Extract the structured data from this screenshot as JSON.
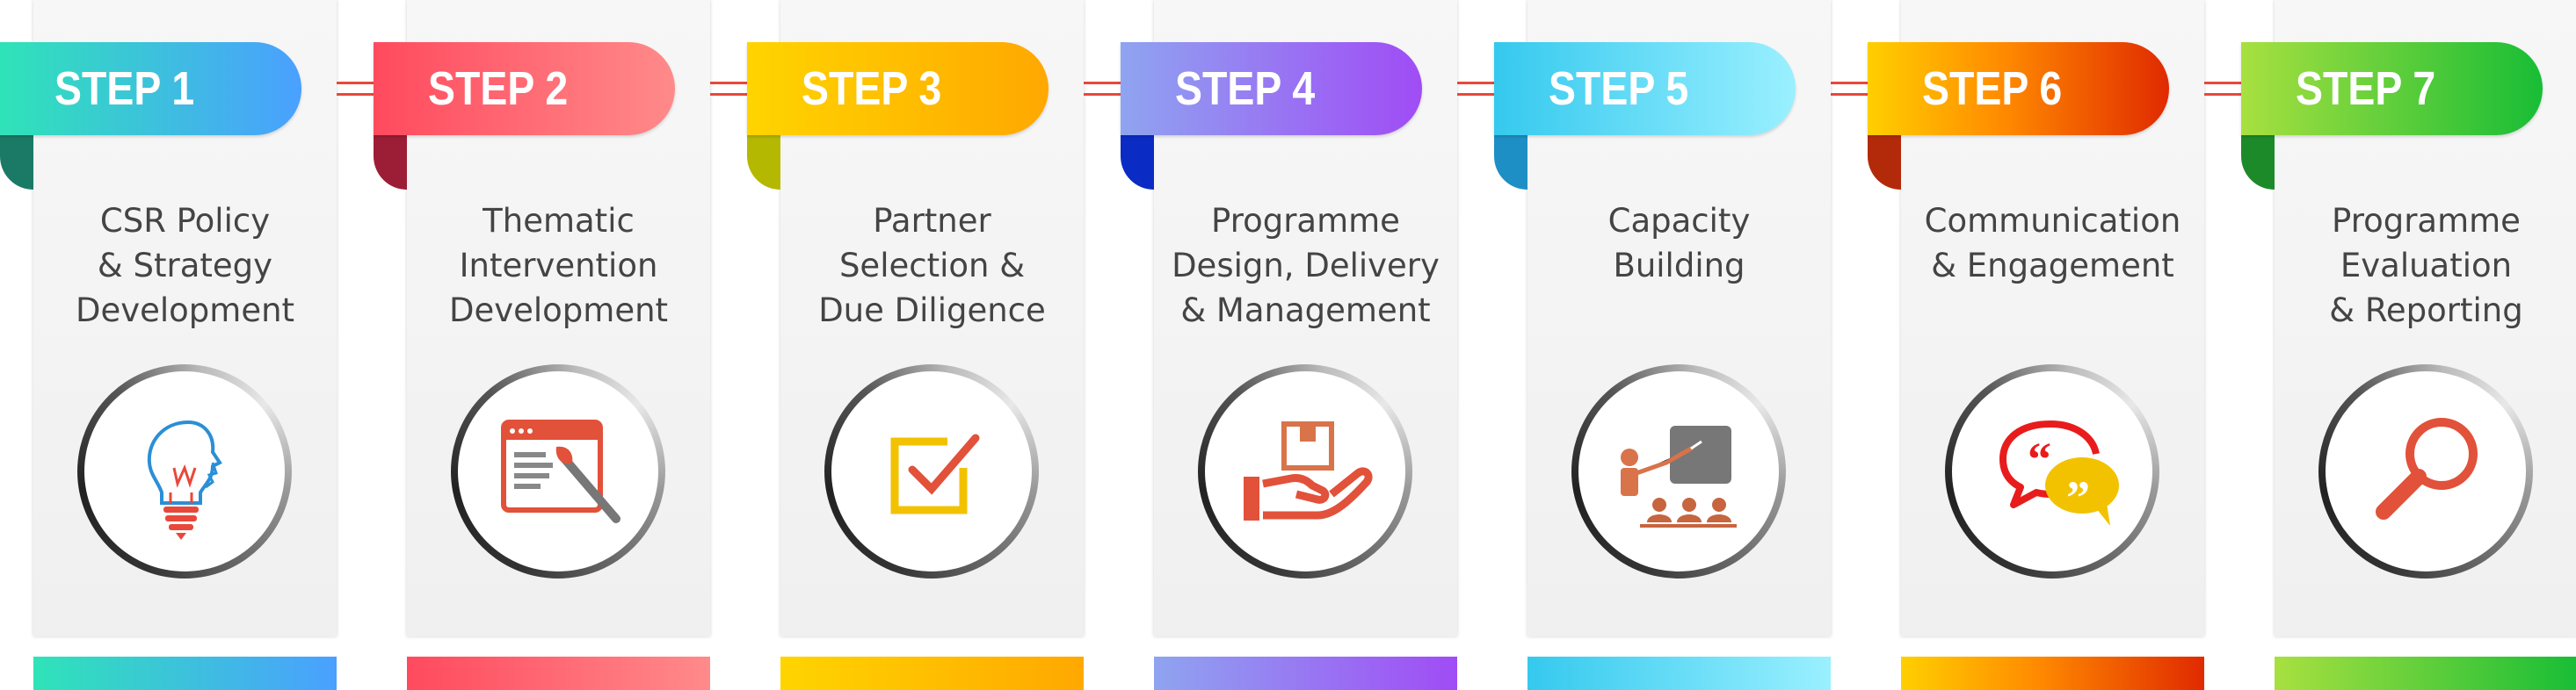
{
  "steps": [
    {
      "label": "STEP 1",
      "title": [
        "CSR Policy",
        "& Strategy",
        "Development"
      ],
      "icon": "lightbulb-head-icon",
      "gradient": [
        "#2fe3b8",
        "#4aa0ff"
      ],
      "fold": "#1b7a66"
    },
    {
      "label": "STEP 2",
      "title": [
        "Thematic",
        "Intervention",
        "Development"
      ],
      "icon": "design-window-brush-icon",
      "gradient": [
        "#ff4a5e",
        "#ff8a8a"
      ],
      "fold": "#9c1e36"
    },
    {
      "label": "STEP 3",
      "title": [
        "Partner",
        "Selection &",
        "Due Diligence"
      ],
      "icon": "checkbox-tick-icon",
      "gradient": [
        "#ffd400",
        "#ffa800"
      ],
      "fold": "#b5b800"
    },
    {
      "label": "STEP 4",
      "title": [
        "Programme",
        "Design, Delivery",
        "& Management"
      ],
      "icon": "hand-box-icon",
      "gradient": [
        "#8fa4f0",
        "#a04cf5"
      ],
      "fold": "#0a2cc4"
    },
    {
      "label": "STEP 5",
      "title": [
        "Capacity",
        "Building",
        ""
      ],
      "icon": "presentation-audience-icon",
      "gradient": [
        "#35c9ee",
        "#9af0ff"
      ],
      "fold": "#1e8fc4"
    },
    {
      "label": "STEP 6",
      "title": [
        "Communication",
        "& Engagement",
        ""
      ],
      "icon": "speech-bubbles-quotes-icon",
      "gradient": [
        "#ffcf00",
        "#e02a00"
      ],
      "fold": "#b32a0a"
    },
    {
      "label": "STEP 7",
      "title": [
        "Programme",
        "Evaluation",
        "& Reporting"
      ],
      "icon": "magnifier-icon",
      "gradient": [
        "#a8e040",
        "#18bd36"
      ],
      "fold": "#1d8a2a"
    }
  ]
}
